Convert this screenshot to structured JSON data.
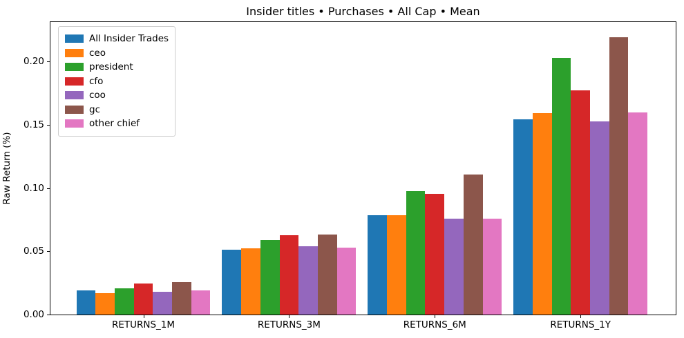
{
  "chart_data": {
    "type": "bar",
    "title": "Insider titles • Purchases • All Cap • Mean",
    "xlabel": "",
    "ylabel": "Raw Return (%)",
    "categories": [
      "RETURNS_1M",
      "RETURNS_3M",
      "RETURNS_6M",
      "RETURNS_1Y"
    ],
    "series": [
      {
        "name": "All Insider Trades",
        "color": "#1f77b4",
        "values": [
          0.0198,
          0.052,
          0.0793,
          0.1549
        ]
      },
      {
        "name": "ceo",
        "color": "#ff7f0e",
        "values": [
          0.0173,
          0.0531,
          0.0792,
          0.1598
        ]
      },
      {
        "name": "president",
        "color": "#2ca02c",
        "values": [
          0.0212,
          0.0594,
          0.0983,
          0.2036
        ]
      },
      {
        "name": "cfo",
        "color": "#d62728",
        "values": [
          0.0253,
          0.0634,
          0.0961,
          0.1776
        ]
      },
      {
        "name": "coo",
        "color": "#9467bd",
        "values": [
          0.0186,
          0.0547,
          0.0764,
          0.1533
        ]
      },
      {
        "name": "gc",
        "color": "#8c564b",
        "values": [
          0.0264,
          0.0636,
          0.1112,
          0.2196
        ]
      },
      {
        "name": "other chief",
        "color": "#e377c2",
        "values": [
          0.0199,
          0.0535,
          0.0764,
          0.1603
        ]
      }
    ],
    "ylim": [
      0,
      0.2317
    ],
    "yticks": [
      0.0,
      0.05,
      0.1,
      0.15,
      0.2
    ],
    "ytick_labels": [
      "0.00",
      "0.05",
      "0.10",
      "0.15",
      "0.20"
    ],
    "grid": false,
    "legend_position": "upper left",
    "spine_color": "#000000",
    "background_color": "#ffffff"
  }
}
